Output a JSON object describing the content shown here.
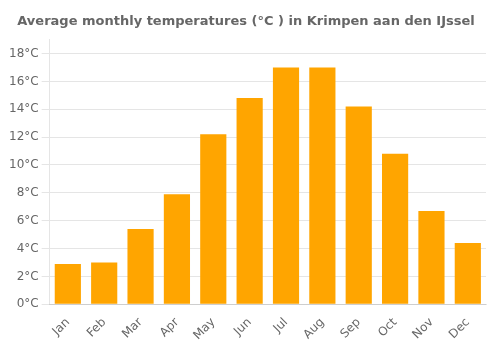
{
  "chart_data": {
    "type": "bar",
    "title": "Average monthly temperatures (°C ) in Krimpen aan den IJssel",
    "categories": [
      "Jan",
      "Feb",
      "Mar",
      "Apr",
      "May",
      "Jun",
      "Jul",
      "Aug",
      "Sep",
      "Oct",
      "Nov",
      "Dec"
    ],
    "values": [
      2.9,
      3.0,
      5.4,
      7.9,
      12.2,
      14.8,
      17.0,
      17.0,
      14.2,
      10.8,
      6.7,
      4.4
    ],
    "color": "#FFA500",
    "ylim": [
      0,
      19
    ],
    "yticks": [
      {
        "value": 0,
        "label": "0°C"
      },
      {
        "value": 2,
        "label": "2°C"
      },
      {
        "value": 4,
        "label": "4°C"
      },
      {
        "value": 6,
        "label": "6°C"
      },
      {
        "value": 8,
        "label": "8°C"
      },
      {
        "value": 10,
        "label": "10°C"
      },
      {
        "value": 12,
        "label": "12°C"
      },
      {
        "value": 14,
        "label": "14°C"
      },
      {
        "value": 16,
        "label": "16°C"
      },
      {
        "value": 18,
        "label": "18°C"
      }
    ],
    "grid": true
  }
}
